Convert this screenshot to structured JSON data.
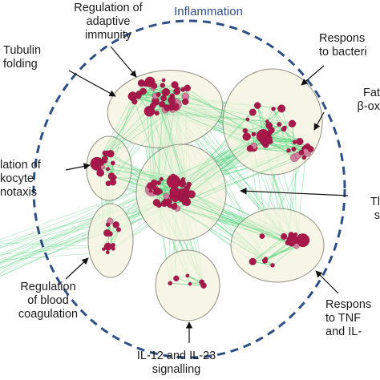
{
  "diagram": {
    "title": "Inflammation",
    "clusters": [
      {
        "id": "adaptive",
        "label": "Regulation of\nadaptive\nimmunity"
      },
      {
        "id": "tubulin",
        "label": "Tubulin\nfolding"
      },
      {
        "id": "bacteria",
        "label": "Respons\nto bacteri"
      },
      {
        "id": "fatty",
        "label": "Fat\nβ-ox"
      },
      {
        "id": "leukocyte",
        "label": "lation of\nkocyte\nnotaxis"
      },
      {
        "id": "tlr",
        "label": "Tl\ns"
      },
      {
        "id": "coagulation",
        "label": "Regulation\nof blood\ncoagulation"
      },
      {
        "id": "il12",
        "label": "IL-12 and IL-23\nsignalling"
      },
      {
        "id": "tnf",
        "label": "Respons\nto TNF\nand IL-"
      }
    ],
    "colors": {
      "ring": "#2e4f86",
      "cluster_fill": "#f5f3df",
      "cluster_stroke": "#8f8f84",
      "edge": "#57d47d",
      "node": "#a8184b",
      "node_light": "#cf7f9b",
      "arrow": "#111111"
    }
  }
}
